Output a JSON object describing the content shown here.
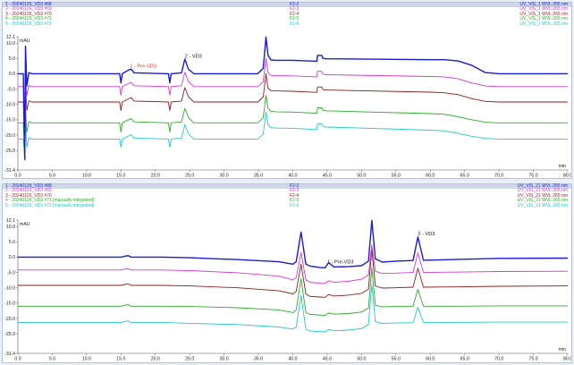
{
  "chart_data": [
    {
      "type": "line",
      "ylabel": "mAU",
      "xlabel": "min",
      "xlim": [
        0,
        80
      ],
      "ylim": [
        -31.4,
        12.1
      ],
      "xticks": [
        "0.0",
        "5.0",
        "10.0",
        "15.0",
        "20.0",
        "25.0",
        "30.0",
        "35.0",
        "40.0",
        "45.0",
        "50.0",
        "55.0",
        "60.0",
        "65.0",
        "70.0",
        "75.0",
        "80.0"
      ],
      "yticks": [
        "12.1",
        "10.0",
        "5.0",
        "0.0",
        "-5.0",
        "-10.0",
        "-15.0",
        "-20.0",
        "-25.0",
        "-31.4"
      ],
      "legend": [
        {
          "name": "1 - 20240126_VD3 #68",
          "channel": "F2-2",
          "detector": "UV_VIS_1 WVL:265 nm",
          "color": "#1a1ad8",
          "selected": true
        },
        {
          "name": "2 - 20240126_VD3 #69",
          "channel": "F2-3",
          "detector": "UV_VIS_1 WVL:265 nm",
          "color": "#d23ad2"
        },
        {
          "name": "3 - 20240126_VD3 #70",
          "channel": "F2-4",
          "detector": "UV_VIS_1 WVL:265 nm",
          "color": "#8c1c1c"
        },
        {
          "name": "4 - 20240126_VD3 #71",
          "channel": "F2-5",
          "detector": "UV_VIS_1 WVL:265 nm",
          "color": "#2aac2a"
        },
        {
          "name": "5 - 20240126_VD3 #72",
          "channel": "F2-6",
          "detector": "UV_VIS_1 WVL:265 nm",
          "color": "#22c8c8"
        }
      ],
      "series": [
        {
          "name": "1 - 20240126_VD3 #68",
          "color": "#1a1ad8",
          "baseline": 0.0,
          "width": 1.4,
          "x": [
            0,
            0.8,
            1.0,
            1.1,
            1.3,
            1.6,
            2,
            14.8,
            15.0,
            15.2,
            16.1,
            16.5,
            16.9,
            21.9,
            22.1,
            22.3,
            23.8,
            24.3,
            24.8,
            25.6,
            34.9,
            35.7,
            36.1,
            36.4,
            36.8,
            37.5,
            40,
            43.5,
            43.6,
            44.2,
            44.4,
            45,
            60,
            62,
            64,
            66,
            68,
            70,
            72,
            75,
            80
          ],
          "y": [
            0,
            0,
            -28,
            9,
            -4,
            0.4,
            0,
            0,
            -3,
            0,
            1.2,
            1.5,
            0.3,
            0,
            -3,
            0,
            0.3,
            4.8,
            1.5,
            0,
            0,
            1.8,
            12,
            6,
            4.5,
            4.4,
            4.4,
            4.1,
            6,
            6,
            5,
            4.9,
            4.6,
            4.6,
            4.2,
            2.8,
            0.4,
            0,
            0,
            0,
            0
          ]
        },
        {
          "name": "2 - 20240126_VD3 #69",
          "color": "#d23ad2",
          "baseline": -4.2,
          "width": 0.9,
          "x": [
            0,
            0.8,
            1.0,
            1.1,
            1.3,
            1.6,
            2,
            14.8,
            15.0,
            15.2,
            16.1,
            16.5,
            16.9,
            21.9,
            22.1,
            22.3,
            23.8,
            24.3,
            24.8,
            25.6,
            34.9,
            35.7,
            36.1,
            36.4,
            36.8,
            37.5,
            40,
            43.5,
            43.6,
            44.2,
            44.4,
            45,
            60,
            62,
            64,
            66,
            68,
            70,
            72,
            75,
            80
          ],
          "y": [
            -4.2,
            -4.2,
            -28,
            1,
            -7,
            -3.8,
            -4.2,
            -4.2,
            -7,
            -4.2,
            -3.2,
            -2.8,
            -3.9,
            -4.2,
            -7,
            -4.2,
            -3.9,
            0.5,
            -2.5,
            -4.2,
            -4.2,
            -2.6,
            5,
            0.3,
            -0.5,
            -0.6,
            -0.7,
            -1.0,
            0.8,
            0.8,
            -0.2,
            -0.3,
            -0.9,
            -1.0,
            -1.6,
            -3.0,
            -4.0,
            -4.2,
            -4.2,
            -4.2,
            -4.2
          ]
        },
        {
          "name": "3 - 20240126_VD3 #70",
          "color": "#8c1c1c",
          "baseline": -9.2,
          "width": 0.9,
          "x": [
            0,
            0.8,
            1.0,
            1.1,
            1.3,
            1.6,
            2,
            14.8,
            15.0,
            15.2,
            16.1,
            16.5,
            16.9,
            21.9,
            22.1,
            22.3,
            23.8,
            24.3,
            24.8,
            25.6,
            34.9,
            35.7,
            36.1,
            36.4,
            36.8,
            37.5,
            40,
            43.5,
            43.6,
            44.2,
            44.4,
            45,
            60,
            62,
            64,
            66,
            68,
            70,
            72,
            75,
            80
          ],
          "y": [
            -9.2,
            -9.2,
            -28,
            -4,
            -12,
            -8.8,
            -9.2,
            -9.2,
            -12,
            -9.2,
            -8.2,
            -7.8,
            -8.9,
            -9.2,
            -12,
            -9.2,
            -8.9,
            -4.5,
            -7.5,
            -9.2,
            -9.2,
            -7.6,
            0,
            -4.7,
            -5.5,
            -5.6,
            -5.7,
            -6.1,
            -4.3,
            -4.3,
            -5.2,
            -5.3,
            -6.0,
            -6.2,
            -6.8,
            -8.1,
            -9.0,
            -9.2,
            -9.2,
            -9.2,
            -9.2
          ]
        },
        {
          "name": "4 - 20240126_VD3 #71",
          "color": "#2aac2a",
          "baseline": -16.0,
          "width": 0.9,
          "x": [
            0,
            0.8,
            1.0,
            1.1,
            1.3,
            1.6,
            2,
            14.8,
            15.0,
            15.2,
            16.1,
            16.5,
            16.9,
            21.9,
            22.1,
            22.3,
            23.8,
            24.3,
            24.8,
            25.6,
            34.9,
            35.7,
            36.1,
            36.4,
            36.8,
            37.5,
            40,
            43.5,
            43.6,
            44.2,
            44.4,
            45,
            60,
            62,
            64,
            66,
            68,
            70,
            72,
            75,
            80
          ],
          "y": [
            -16,
            -16,
            -28,
            -11,
            -19,
            -15.6,
            -16,
            -16,
            -19,
            -16,
            -15,
            -14.6,
            -15.7,
            -16,
            -19,
            -16,
            -15.7,
            -11.3,
            -14.3,
            -16,
            -16,
            -14.4,
            -7,
            -11.3,
            -12.3,
            -12.4,
            -12.5,
            -12.9,
            -11.1,
            -11.1,
            -12.0,
            -12.1,
            -13.0,
            -13.2,
            -14.0,
            -15.0,
            -15.8,
            -16,
            -16,
            -16,
            -16
          ]
        },
        {
          "name": "5 - 20240126_VD3 #72",
          "color": "#22c8c8",
          "baseline": -21.3,
          "width": 0.9,
          "x": [
            0,
            0.8,
            1.0,
            1.1,
            1.3,
            1.6,
            2,
            14.8,
            15.0,
            15.2,
            16.1,
            16.5,
            16.9,
            21.9,
            22.1,
            22.3,
            23.8,
            24.3,
            24.8,
            25.6,
            34.9,
            35.7,
            36.1,
            36.4,
            36.8,
            37.5,
            40,
            43.5,
            43.6,
            44.2,
            44.4,
            45,
            60,
            62,
            64,
            66,
            68,
            70,
            72,
            75,
            80
          ],
          "y": [
            -21.3,
            -21.3,
            -28,
            -16,
            -24,
            -20.9,
            -21.3,
            -21.3,
            -24,
            -21.3,
            -20.3,
            -19.9,
            -21,
            -21.3,
            -24,
            -21.3,
            -21,
            -16.6,
            -19.6,
            -21.3,
            -21.3,
            -19.7,
            -12.5,
            -16.6,
            -17.6,
            -17.7,
            -17.8,
            -18.2,
            -16.4,
            -16.4,
            -17.3,
            -17.4,
            -18.4,
            -18.6,
            -19.4,
            -20.4,
            -21.1,
            -21.3,
            -21.3,
            -21.3,
            -21.3
          ]
        }
      ],
      "annotations": [
        {
          "text": "1 - Pre-VD3",
          "x": 16.3,
          "y": 2.0,
          "color": "#d23a2a"
        },
        {
          "text": "2 - VD3",
          "x": 24.3,
          "y": 5.3,
          "color": "#111111"
        }
      ]
    },
    {
      "type": "line",
      "ylabel": "mAU",
      "xlabel": "min",
      "xlim": [
        0,
        80
      ],
      "ylim": [
        -31.4,
        12.1
      ],
      "xticks": [
        "0.0",
        "5.0",
        "10.0",
        "15.0",
        "20.0",
        "25.0",
        "30.0",
        "35.0",
        "40.0",
        "45.0",
        "50.0",
        "55.0",
        "60.0",
        "65.0",
        "70.0",
        "75.0",
        "80.0"
      ],
      "yticks": [
        "12.1",
        "10.0",
        "5.0",
        "0.0",
        "-5.0",
        "-10.0",
        "-15.0",
        "-20.0",
        "-25.0",
        "-31.4"
      ],
      "legend": [
        {
          "name": "1 - 20240126_VD3 #68",
          "channel": "F2-2",
          "detector": "UV_VIS_21 WVL:265 nm",
          "color": "#1a1ad8",
          "selected": true
        },
        {
          "name": "2 - 20240126_VD3 #69",
          "channel": "F2-3",
          "detector": "UV_VIS_21 WVL:265 nm",
          "color": "#d23ad2"
        },
        {
          "name": "3 - 20240126_VD3 #70",
          "channel": "F2-4",
          "detector": "UV_VIS_21 WVL:265 nm",
          "color": "#8c1c1c"
        },
        {
          "name": "4 - 20240126_VD3 #71 [manually integrated]",
          "channel": "F2-5",
          "detector": "UV_VIS_21 WVL:265 nm",
          "color": "#2aac2a"
        },
        {
          "name": "5 - 20240126_VD3 #72 [manually integrated]",
          "channel": "F2-6",
          "detector": "UV_VIS_21 WVL:265 nm",
          "color": "#22c8c8"
        }
      ],
      "series": [
        {
          "name": "1 - 20240126_VD3 #68",
          "color": "#1a1ad8",
          "baseline": 0.0,
          "width": 1.4,
          "x": [
            0,
            5,
            15,
            16,
            16.5,
            21,
            25,
            32,
            38,
            40.0,
            40.5,
            41.2,
            41.9,
            42.5,
            44,
            44.7,
            45.2,
            46,
            48,
            50,
            51.0,
            51.5,
            52.0,
            53,
            55,
            57.5,
            58.2,
            59,
            63,
            70,
            80
          ],
          "y": [
            0,
            0,
            0,
            0.5,
            0,
            0,
            -0.2,
            -0.8,
            -1.5,
            -2.3,
            -1.5,
            8.2,
            -2.3,
            -2.9,
            -3.4,
            -3.5,
            -1.8,
            -3.2,
            -3.1,
            -2.8,
            -1.3,
            12.0,
            -0.5,
            -1.6,
            -1.3,
            -1.1,
            6.6,
            -1.0,
            -0.8,
            -0.4,
            -0.3
          ]
        },
        {
          "name": "2 - 20240126_VD3 #69",
          "color": "#d23ad2",
          "baseline": -4.2,
          "width": 0.9,
          "x": [
            0,
            5,
            15,
            16,
            16.5,
            21,
            25,
            32,
            38,
            40.0,
            40.5,
            41.2,
            41.9,
            42.5,
            44,
            44.7,
            45.2,
            46,
            48,
            50,
            51.0,
            51.5,
            52.0,
            53,
            55,
            57.5,
            58.2,
            59,
            63,
            70,
            80
          ],
          "y": [
            -4.2,
            -4.2,
            -4.2,
            -3.7,
            -4.2,
            -4.2,
            -4.4,
            -5.1,
            -6.2,
            -7.4,
            -6.6,
            1.5,
            -7.4,
            -8.2,
            -8.5,
            -8.6,
            -7.7,
            -8.2,
            -7.9,
            -7.2,
            -5.8,
            4.0,
            -4.6,
            -5.3,
            -5.2,
            -5.0,
            1.4,
            -5.0,
            -4.9,
            -4.7,
            -4.6
          ]
        },
        {
          "name": "3 - 20240126_VD3 #70",
          "color": "#8c1c1c",
          "baseline": -9.2,
          "width": 0.9,
          "x": [
            0,
            5,
            15,
            16,
            16.5,
            21,
            25,
            32,
            38,
            40.0,
            40.5,
            41.2,
            41.9,
            42.5,
            44,
            44.7,
            45.2,
            46,
            48,
            50,
            51.0,
            51.5,
            52.0,
            53,
            55,
            57.5,
            58.2,
            59,
            63,
            70,
            80
          ],
          "y": [
            -9.2,
            -9.2,
            -9.2,
            -8.7,
            -9.2,
            -9.2,
            -9.4,
            -10.0,
            -11.0,
            -12.0,
            -11.2,
            -2.3,
            -12.0,
            -12.8,
            -13.0,
            -13.1,
            -12.2,
            -12.7,
            -12.4,
            -11.8,
            -10.4,
            2.5,
            -9.4,
            -10.1,
            -10.0,
            -9.8,
            -3.6,
            -9.8,
            -9.7,
            -9.5,
            -9.4
          ]
        },
        {
          "name": "4 - 20240126_VD3 #71",
          "color": "#2aac2a",
          "baseline": -16.0,
          "width": 0.9,
          "x": [
            0,
            5,
            15,
            16,
            16.5,
            21,
            25,
            32,
            38,
            40.0,
            40.5,
            41.2,
            41.9,
            42.5,
            44,
            44.7,
            45.2,
            46,
            48,
            50,
            51.0,
            51.5,
            52.0,
            53,
            55,
            57.5,
            58.2,
            59,
            63,
            70,
            80
          ],
          "y": [
            -16,
            -16,
            -16,
            -15.5,
            -16,
            -16,
            -16.1,
            -16.5,
            -17.2,
            -18.1,
            -17.3,
            -7.0,
            -18.1,
            -18.7,
            -18.9,
            -19.0,
            -18.2,
            -18.6,
            -18.4,
            -17.9,
            -16.6,
            -3.5,
            -15.7,
            -16.2,
            -16.1,
            -16.0,
            -10.5,
            -16.0,
            -16.0,
            -15.9,
            -15.9
          ]
        },
        {
          "name": "5 - 20240126_VD3 #72",
          "color": "#22c8c8",
          "baseline": -21.3,
          "width": 0.9,
          "x": [
            0,
            5,
            15,
            16,
            16.5,
            21,
            25,
            32,
            38,
            40.0,
            40.5,
            41.2,
            41.9,
            42.5,
            44,
            44.7,
            45.2,
            46,
            48,
            50,
            51.0,
            51.5,
            52.0,
            53,
            55,
            57.5,
            58.2,
            59,
            63,
            70,
            80
          ],
          "y": [
            -21.3,
            -21.3,
            -21.3,
            -20.8,
            -21.3,
            -21.3,
            -21.6,
            -22.0,
            -22.8,
            -23.5,
            -22.7,
            -12.5,
            -23.5,
            -24.1,
            -24.3,
            -24.4,
            -23.6,
            -24.0,
            -23.8,
            -23.3,
            -22.0,
            -9.0,
            -21.0,
            -21.6,
            -21.5,
            -21.4,
            -16.3,
            -21.4,
            -21.3,
            -21.2,
            -21.2
          ]
        }
      ],
      "annotations": [
        {
          "text": "1 - Pre-VD3",
          "x": 45.0,
          "y": -2.0,
          "color": "#111111"
        },
        {
          "text": "2 - VD3",
          "x": 58.2,
          "y": 7.2,
          "color": "#111111"
        }
      ]
    }
  ]
}
